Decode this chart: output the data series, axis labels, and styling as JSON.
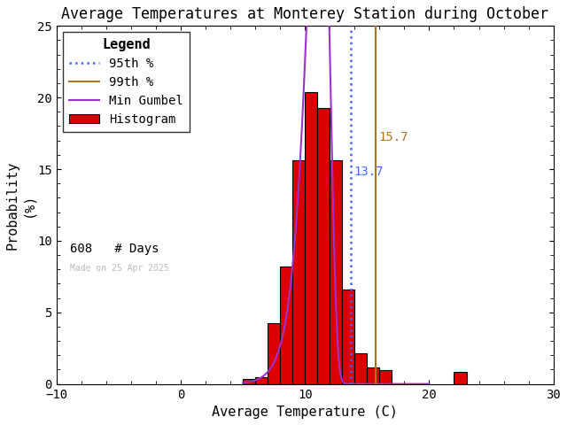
{
  "title": "Average Temperatures at Monterey Station during October",
  "xlabel": "Average Temperature (C)",
  "ylabel": "Probability\n(%)",
  "xlim": [
    -10,
    30
  ],
  "ylim": [
    0,
    25
  ],
  "xticks": [
    -10,
    0,
    10,
    20,
    30
  ],
  "yticks": [
    0,
    5,
    10,
    15,
    20,
    25
  ],
  "hist_bins_left": [
    5,
    6,
    7,
    8,
    9,
    10,
    11,
    12,
    13,
    14,
    15,
    16,
    22
  ],
  "hist_heights": [
    0.33,
    0.49,
    4.27,
    8.22,
    15.62,
    20.39,
    19.24,
    15.62,
    6.58,
    2.14,
    1.15,
    0.99,
    0.82
  ],
  "hist_color": "#dd0000",
  "hist_edgecolor": "#000000",
  "bin_width": 1,
  "p95_value": 13.7,
  "p99_value": 15.7,
  "p95_color": "#4466ff",
  "p99_color": "#aa7722",
  "gumbel_color": "#9933cc",
  "gumbel_mu": 11.2,
  "gumbel_beta": 0.85,
  "n_days": 608,
  "made_on": "Made on 25 Apr 2025",
  "background_color": "#ffffff",
  "title_fontsize": 12,
  "label_fontsize": 11,
  "tick_fontsize": 10,
  "legend_fontsize": 10
}
